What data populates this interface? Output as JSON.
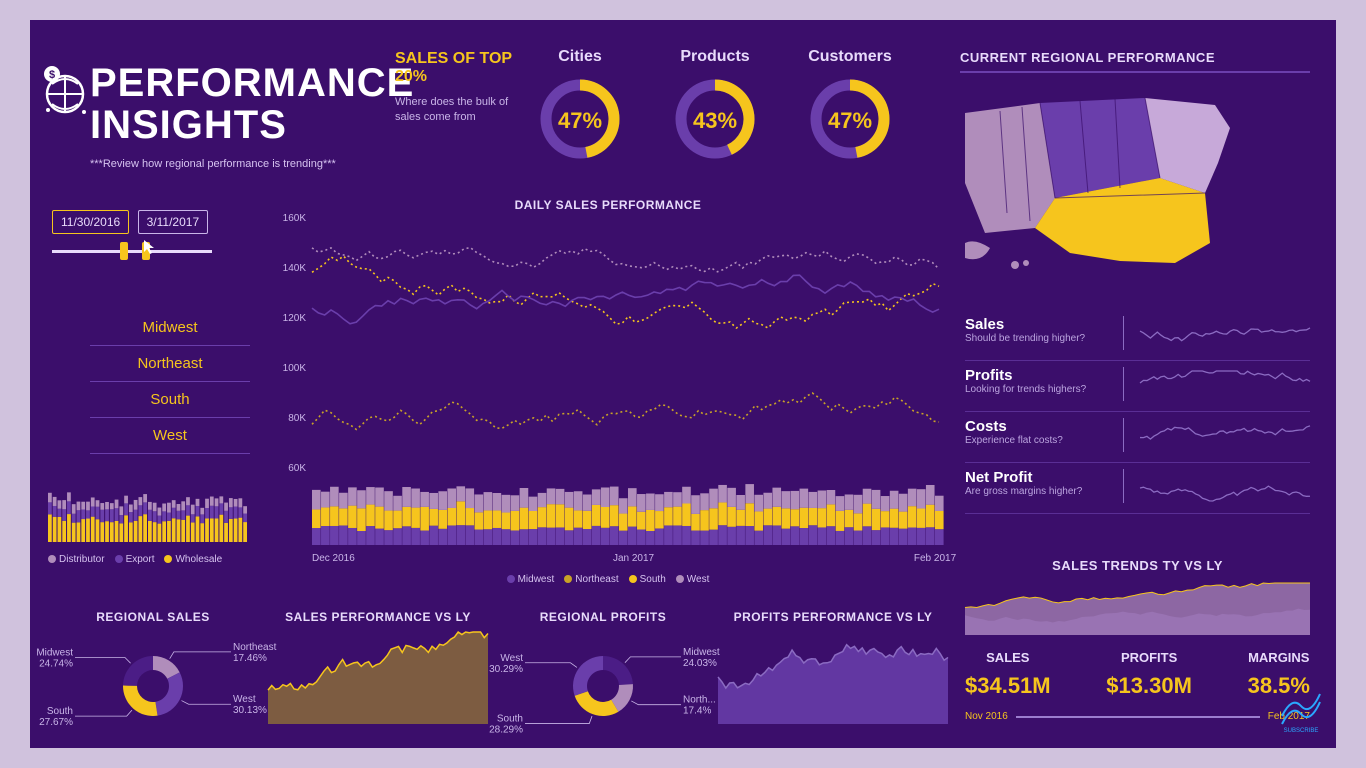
{
  "colors": {
    "bg": "#3b0e6b",
    "accent": "#f6c51d",
    "purple_light": "#8b6bc2",
    "purple_mid": "#6a3eab",
    "purple_dark": "#4b1d86",
    "mauve": "#b08dbb",
    "text": "#e8dbfb",
    "text_dim": "#c9b5e8",
    "brown": "#8a6a3a"
  },
  "header": {
    "title_line1": "PERFORMANCE",
    "title_line2": "INSIGHTS",
    "subtitle": "***Review how regional performance is trending***"
  },
  "top20": {
    "label": "SALES OF TOP 20%",
    "sub": "Where does the bulk of sales come from"
  },
  "kpis": [
    {
      "label": "Cities",
      "value": "47%",
      "pct": 47
    },
    {
      "label": "Products",
      "value": "43%",
      "pct": 43
    },
    {
      "label": "Customers",
      "value": "47%",
      "pct": 47
    }
  ],
  "date_filter": {
    "from": "11/30/2016",
    "to": "3/11/2017"
  },
  "regions": [
    "Midwest",
    "Northeast",
    "South",
    "West"
  ],
  "left_stack_legend": [
    {
      "label": "Distributor",
      "color": "#b08dbb"
    },
    {
      "label": "Export",
      "color": "#6a3eab"
    },
    {
      "label": "Wholesale",
      "color": "#f6c51d"
    }
  ],
  "daily_sales": {
    "title": "DAILY SALES PERFORMANCE",
    "y_ticks": [
      "160K",
      "140K",
      "120K",
      "100K",
      "80K",
      "60K"
    ],
    "y_min": 60,
    "y_max": 160,
    "x_labels": [
      "Dec 2016",
      "Jan 2017",
      "Feb 2017"
    ],
    "series": {
      "west": {
        "color": "#b08dbb",
        "dash": true
      },
      "south": {
        "color": "#f6c51d",
        "dash": true
      },
      "midwest": {
        "color": "#6a3eab",
        "dash": false
      },
      "northeast": {
        "color": "#c9a227",
        "dash": true
      }
    },
    "legend": [
      {
        "label": "Midwest",
        "color": "#6a3eab"
      },
      {
        "label": "Northeast",
        "color": "#c9a227"
      },
      {
        "label": "South",
        "color": "#f6c51d"
      },
      {
        "label": "West",
        "color": "#b08dbb"
      }
    ]
  },
  "regional_perf_title": "CURRENT REGIONAL PERFORMANCE",
  "metrics": [
    {
      "name": "Sales",
      "tag": "Should be trending higher?"
    },
    {
      "name": "Profits",
      "tag": "Looking for trends highers?"
    },
    {
      "name": "Costs",
      "tag": "Experience flat costs?"
    },
    {
      "name": "Net Profit",
      "tag": "Are gross margins higher?"
    }
  ],
  "trends_title": "SALES TRENDS TY VS LY",
  "big3": {
    "sales": {
      "label": "SALES",
      "value": "$34.51M"
    },
    "profits": {
      "label": "PROFITS",
      "value": "$13.30M"
    },
    "margins": {
      "label": "MARGINS",
      "value": "38.5%"
    }
  },
  "foot_range": {
    "from": "Nov 2016",
    "to": "Feb 2017"
  },
  "bottom": {
    "regional_sales": {
      "title": "REGIONAL SALES",
      "slices": [
        {
          "label": "Northeast",
          "pct": 17.46,
          "color": "#b08dbb"
        },
        {
          "label": "West",
          "pct": 30.13,
          "color": "#6a3eab"
        },
        {
          "label": "South",
          "pct": 27.67,
          "color": "#f6c51d"
        },
        {
          "label": "Midwest",
          "pct": 24.74,
          "color": "#4b1d86"
        }
      ]
    },
    "sales_vs_ly": {
      "title": "SALES PERFORMANCE VS LY"
    },
    "regional_profits": {
      "title": "REGIONAL PROFITS",
      "slices": [
        {
          "label": "Midwest",
          "pct": 24.03,
          "color": "#4b1d86"
        },
        {
          "label": "North...",
          "pct": 17.4,
          "color": "#b08dbb"
        },
        {
          "label": "South",
          "pct": 28.29,
          "color": "#f6c51d"
        },
        {
          "label": "West",
          "pct": 30.29,
          "color": "#6a3eab"
        }
      ]
    },
    "profits_vs_ly": {
      "title": "PROFITS PERFORMANCE VS LY"
    }
  }
}
